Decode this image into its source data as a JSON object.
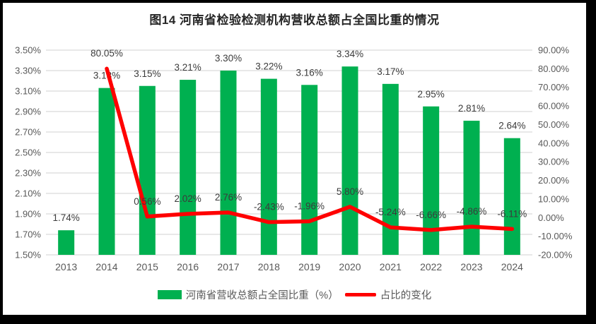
{
  "title": "图14 河南省检验检测机构营收总额占全国比重的情况",
  "colors": {
    "bar": "#00B050",
    "line": "#FF0000",
    "grid": "#DBDBDB",
    "axis_text": "#595959",
    "data_label_text": "#3B3B3B",
    "title_text": "#262626",
    "frame": "#000000",
    "background": "#FFFFFF"
  },
  "chart_data": {
    "type": "combo",
    "title": "图14 河南省检验检测机构营收总额占全国比重的情况",
    "categories": [
      "2013",
      "2014",
      "2015",
      "2016",
      "2017",
      "2018",
      "2019",
      "2020",
      "2021",
      "2022",
      "2023",
      "2024"
    ],
    "series": [
      {
        "name": "河南省营收总额占全国比重（%）",
        "type": "bar",
        "axis": "left",
        "color": "#00B050",
        "values": [
          1.74,
          3.13,
          3.15,
          3.21,
          3.3,
          3.22,
          3.16,
          3.34,
          3.17,
          2.95,
          2.81,
          2.64
        ],
        "labels": [
          "1.74%",
          "3.13%",
          "3.15%",
          "3.21%",
          "3.30%",
          "3.22%",
          "3.16%",
          "3.34%",
          "3.17%",
          "2.95%",
          "2.81%",
          "2.64%"
        ]
      },
      {
        "name": "占比的变化",
        "type": "line",
        "axis": "right",
        "color": "#FF0000",
        "values": [
          null,
          80.05,
          0.56,
          2.02,
          2.76,
          -2.43,
          -1.96,
          5.8,
          -5.24,
          -6.66,
          -4.86,
          -6.11
        ],
        "labels": [
          null,
          "80.05%",
          "0.56%",
          "2.02%",
          "2.76%",
          "-2.43%",
          "-1.96%",
          "5.80%",
          "-5.24%",
          "-6.66%",
          "-4.86%",
          "-6.11%"
        ]
      }
    ],
    "left_axis": {
      "min": 1.5,
      "max": 3.5,
      "step": 0.2,
      "ticks": [
        "3.50%",
        "3.30%",
        "3.10%",
        "2.90%",
        "2.70%",
        "2.50%",
        "2.30%",
        "2.10%",
        "1.90%",
        "1.70%",
        "1.50%"
      ]
    },
    "right_axis": {
      "min": -20,
      "max": 90,
      "step": 10,
      "ticks": [
        "90.00%",
        "80.00%",
        "70.00%",
        "60.00%",
        "50.00%",
        "40.00%",
        "30.00%",
        "20.00%",
        "10.00%",
        "0.00%",
        "-10.00%",
        "-20.00%"
      ]
    },
    "grid": true,
    "legend_position": "bottom"
  },
  "legend": {
    "bar_label": "河南省营收总额占全国比重（%）",
    "line_label": "占比的变化"
  }
}
